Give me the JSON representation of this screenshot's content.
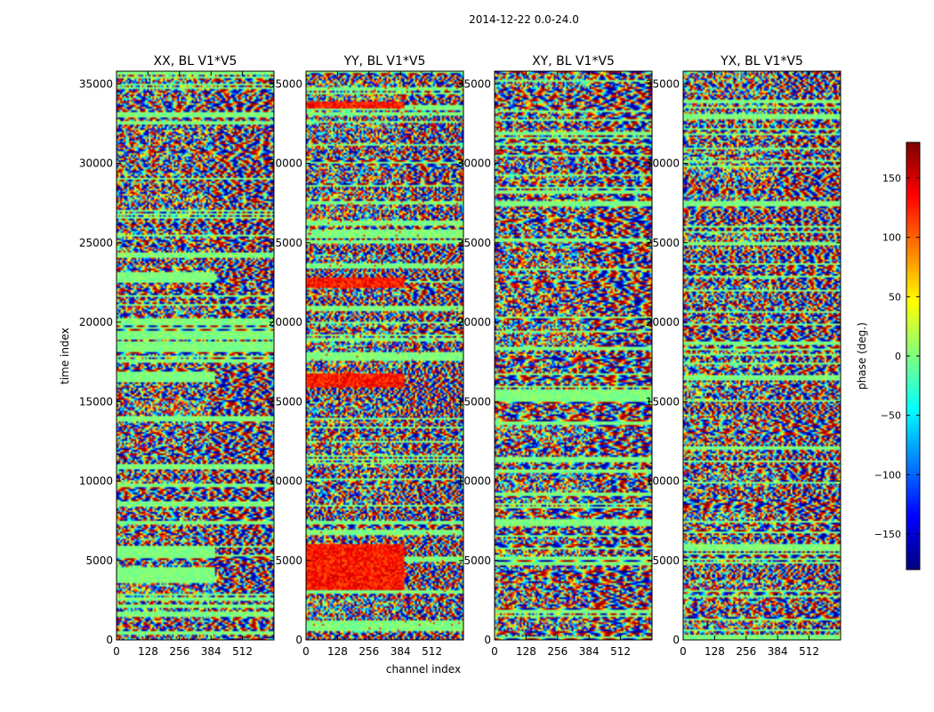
{
  "figure_title": "2014-12-22 0.0-24.0",
  "chart_data": {
    "type": "heatmap",
    "title": "2014-12-22 0.0-24.0",
    "xlabel": "channel index",
    "ylabel": "time index",
    "xlim": [
      0,
      640
    ],
    "ylim": [
      0,
      35800
    ],
    "x_ticks": [
      0,
      128,
      256,
      384,
      512
    ],
    "y_ticks": [
      0,
      5000,
      10000,
      15000,
      20000,
      25000,
      30000,
      35000
    ],
    "panels": [
      {
        "title": "XX, BL V1*V5"
      },
      {
        "title": "YY, BL V1*V5"
      },
      {
        "title": "XY, BL V1*V5"
      },
      {
        "title": "YX, BL V1*V5"
      }
    ],
    "colorbar": {
      "label": "phase (deg.)",
      "min": -180,
      "max": 180,
      "ticks": [
        150,
        100,
        50,
        0,
        -50,
        -100,
        -150
      ],
      "tick_labels": [
        "150",
        "100",
        "50",
        "0",
        "−50",
        "−100",
        "−150"
      ],
      "colormap": "jet",
      "colors": [
        "#00007f",
        "#0000ff",
        "#007fff",
        "#00ffff",
        "#7fff7f",
        "#ffff00",
        "#ff7f00",
        "#ff0000",
        "#7f0000"
      ]
    }
  }
}
